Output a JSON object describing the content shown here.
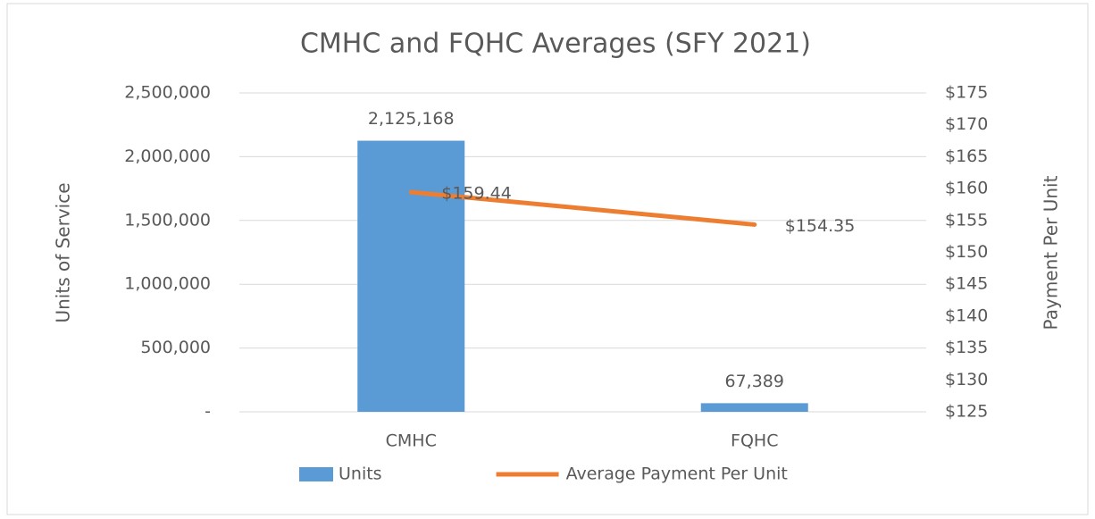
{
  "chart_data": {
    "type": "bar",
    "title": "CMHC and FQHC Averages (SFY 2021)",
    "categories": [
      "CMHC",
      "FQHC"
    ],
    "series": [
      {
        "name": "Units",
        "type": "bar",
        "color": "#5b9bd5",
        "values": [
          2125168,
          67389
        ],
        "value_labels": [
          "2,125,168",
          "67,389"
        ]
      },
      {
        "name": "Average Payment Per Unit",
        "type": "line",
        "axis": "y2",
        "color": "#ed7d31",
        "values": [
          159.44,
          154.35
        ],
        "value_labels": [
          "$159.44",
          "$154.35"
        ]
      }
    ],
    "ylabel": "Units of Service",
    "y2label": "Payment Per Unit",
    "ylim": [
      0,
      2500000
    ],
    "yticks": [
      {
        "value": 0,
        "label": "-"
      },
      {
        "value": 500000,
        "label": "500,000"
      },
      {
        "value": 1000000,
        "label": "1,000,000"
      },
      {
        "value": 1500000,
        "label": "1,500,000"
      },
      {
        "value": 2000000,
        "label": "2,000,000"
      },
      {
        "value": 2500000,
        "label": "2,500,000"
      }
    ],
    "y2lim": [
      125,
      175
    ],
    "y2ticks": [
      {
        "value": 125,
        "label": "$125"
      },
      {
        "value": 130,
        "label": "$130"
      },
      {
        "value": 135,
        "label": "$135"
      },
      {
        "value": 140,
        "label": "$140"
      },
      {
        "value": 145,
        "label": "$145"
      },
      {
        "value": 150,
        "label": "$150"
      },
      {
        "value": 155,
        "label": "$155"
      },
      {
        "value": 160,
        "label": "$160"
      },
      {
        "value": 165,
        "label": "$165"
      },
      {
        "value": 170,
        "label": "$170"
      },
      {
        "value": 175,
        "label": "$175"
      }
    ],
    "grid": true,
    "legend": "bottom"
  }
}
